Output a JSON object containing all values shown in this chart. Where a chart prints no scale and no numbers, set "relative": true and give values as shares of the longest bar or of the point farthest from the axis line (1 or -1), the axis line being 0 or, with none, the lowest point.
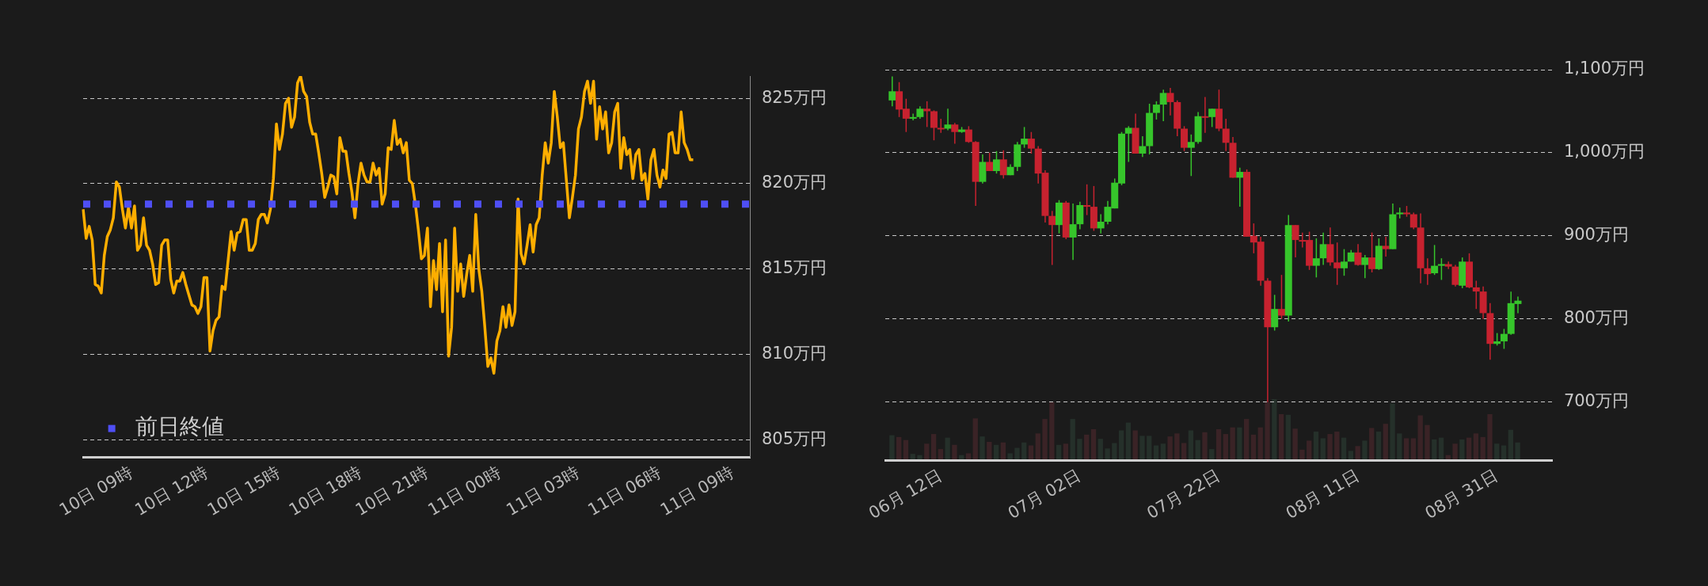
{
  "chart_data": [
    {
      "type": "line",
      "series": [
        {
          "color": "#ffae00",
          "values": [
            818.5,
            816.8,
            817.5,
            816.7,
            814.1,
            814.0,
            813.6,
            815.8,
            816.9,
            817.3,
            818.0,
            820.1,
            819.8,
            818.5,
            817.4,
            818.6,
            817.4,
            818.7,
            816.1,
            816.4,
            818.0,
            816.4,
            816.1,
            815.3,
            814.1,
            814.2,
            816.4,
            816.7,
            816.7,
            814.4,
            813.6,
            814.3,
            814.3,
            814.8,
            814.1,
            813.5,
            812.9,
            812.8,
            812.4,
            812.8,
            814.5,
            814.5,
            810.2,
            811.4,
            812.0,
            812.2,
            814.0,
            813.8,
            815.5,
            817.2,
            816.1,
            817.1,
            817.2,
            817.9,
            817.9,
            816.1,
            816.1,
            816.5,
            817.9,
            818.2,
            818.2,
            817.7,
            818.5,
            820.3,
            823.5,
            822.0,
            822.9,
            824.7,
            825.0,
            823.3,
            823.9,
            825.9,
            826.3,
            825.4,
            825.1,
            823.6,
            822.9,
            822.9,
            821.8,
            820.6,
            819.2,
            819.8,
            820.5,
            820.4,
            819.4,
            822.7,
            821.9,
            821.9,
            820.6,
            819.5,
            818.0,
            820.0,
            821.2,
            820.5,
            820.1,
            820.1,
            821.2,
            820.5,
            820.9,
            818.8,
            819.4,
            822.1,
            822.0,
            823.7,
            822.3,
            822.6,
            821.8,
            822.4,
            820.2,
            820.0,
            818.8,
            817.3,
            815.6,
            815.8,
            817.4,
            812.8,
            815.5,
            813.8,
            816.5,
            812.5,
            816.7,
            809.9,
            811.6,
            817.4,
            813.7,
            815.3,
            813.4,
            814.7,
            815.8,
            813.7,
            818.2,
            815.0,
            813.7,
            811.6,
            809.3,
            809.8,
            808.9,
            810.8,
            811.4,
            812.8,
            811.6,
            812.9,
            811.7,
            812.5,
            819.1,
            815.9,
            815.3,
            816.4,
            817.6,
            816.0,
            817.6,
            818.0,
            820.5,
            822.4,
            821.2,
            822.4,
            825.4,
            823.9,
            822.1,
            822.4,
            820.2,
            818.0,
            819.2,
            820.5,
            823.2,
            823.9,
            825.4,
            826.0,
            824.7,
            826.0,
            822.6,
            824.5,
            823.2,
            824.2,
            821.8,
            822.4,
            824.2,
            824.7,
            820.9,
            822.7,
            821.7,
            822.0,
            820.3,
            821.7,
            822.0,
            820.2,
            820.6,
            819.1,
            821.4,
            822.0,
            820.5,
            819.8,
            820.8,
            820.3,
            822.9,
            823.0,
            821.8,
            821.8,
            824.2,
            822.4,
            822.0,
            821.4,
            821.4,
            null,
            null,
            null,
            null,
            null,
            null,
            null,
            null,
            null,
            null,
            null,
            null,
            null,
            null,
            null,
            null,
            null,
            null,
            null
          ]
        }
      ],
      "categories": [
        null,
        null,
        null,
        null,
        null,
        null,
        null,
        null,
        null,
        null,
        null,
        null,
        null,
        null,
        null,
        null,
        "10日 09時",
        null,
        null,
        null,
        null,
        null,
        null,
        null,
        null,
        null,
        null,
        null,
        null,
        null,
        null,
        null,
        null,
        null,
        null,
        null,
        null,
        null,
        null,
        null,
        null,
        "10日 12時",
        null,
        null,
        null,
        null,
        null,
        null,
        null,
        null,
        null,
        null,
        null,
        null,
        null,
        null,
        null,
        null,
        null,
        null,
        null,
        null,
        null,
        null,
        null,
        "10日 15時",
        null,
        null,
        null,
        null,
        null,
        null,
        null,
        null,
        null,
        null,
        null,
        null,
        null,
        null,
        null,
        null,
        null,
        null,
        null,
        null,
        null,
        null,
        null,
        null,
        null,
        null,
        "10日 18時",
        null,
        null,
        null,
        null,
        null,
        null,
        null,
        null,
        null,
        null,
        null,
        null,
        null,
        null,
        null,
        null,
        null,
        null,
        null,
        null,
        null,
        "10日 21時",
        null,
        null,
        null,
        null,
        null,
        null,
        null,
        null,
        null,
        null,
        null,
        null,
        null,
        null,
        null,
        null,
        null,
        null,
        null,
        null,
        null,
        null,
        null,
        "11日 00時",
        null,
        null,
        null,
        null,
        null,
        null,
        null,
        null,
        null,
        null,
        null,
        null,
        null,
        null,
        null,
        null,
        null,
        null,
        null,
        null,
        null,
        null,
        null,
        null,
        null,
        "11日 03時",
        null,
        null,
        null,
        null,
        null,
        null,
        null,
        null,
        null,
        null,
        null,
        null,
        null,
        null,
        null,
        null,
        null,
        null,
        null,
        null,
        null,
        null,
        null,
        null,
        null,
        null,
        "11日 06時",
        null,
        null,
        null,
        null,
        null,
        null,
        null,
        null,
        null,
        null,
        null,
        null,
        null,
        null,
        null,
        null,
        null,
        null,
        null,
        null,
        null,
        null,
        null,
        "11日 09時",
        null,
        null,
        null,
        null,
        null,
        null
      ],
      "ylim": [
        804,
        826.3
      ],
      "yticks": [
        {
          "value": 805,
          "label": "805万円"
        },
        {
          "value": 810,
          "label": "810万円"
        },
        {
          "value": 815,
          "label": "815万円"
        },
        {
          "value": 820,
          "label": "820万円"
        },
        {
          "value": 825,
          "label": "825万円"
        }
      ],
      "grid": "y",
      "legend": "bottom left",
      "ref_lines": [
        {
          "axis": "y",
          "value": 818.8,
          "label": "前日終値",
          "color": "#4f4ff5",
          "line_style": "dotted"
        }
      ]
    },
    {
      "type": "candlestick",
      "x": [
        "--06-05",
        "--06-06",
        "--06-07",
        "--06-08",
        "--06-09",
        "--06-10",
        "--06-11",
        "--06-12",
        "--06-13",
        "--06-14",
        "--06-15",
        "--06-16",
        "--06-17",
        "--06-18",
        "--06-19",
        "--06-20",
        "--06-21",
        "--06-22",
        "--06-23",
        "--06-24",
        "--06-25",
        "--06-26",
        "--06-27",
        "--06-28",
        "--06-29",
        "--06-30",
        "--07-01",
        "--07-02",
        "--07-03",
        "--07-04",
        "--07-05",
        "--07-06",
        "--07-07",
        "--07-08",
        "--07-09",
        "--07-10",
        "--07-11",
        "--07-12",
        "--07-13",
        "--07-14",
        "--07-15",
        "--07-16",
        "--07-17",
        "--07-18",
        "--07-19",
        "--07-20",
        "--07-21",
        "--07-22",
        "--07-23",
        "--07-24",
        "--07-25",
        "--07-26",
        "--07-27",
        "--07-28",
        "--07-29",
        "--07-30",
        "--07-31",
        "--08-01",
        "--08-02",
        "--08-03",
        "--08-04",
        "--08-05",
        "--08-06",
        "--08-07",
        "--08-08",
        "--08-09",
        "--08-10",
        "--08-11",
        "--08-12",
        "--08-13",
        "--08-14",
        "--08-15",
        "--08-16",
        "--08-17",
        "--08-18",
        "--08-19",
        "--08-20",
        "--08-21",
        "--08-22",
        "--08-23",
        "--08-24",
        "--08-25",
        "--08-26",
        "--08-27",
        "--08-28",
        "--08-29",
        "--08-30",
        "--08-31",
        "--09-01",
        "--09-02",
        "--09-03"
      ],
      "ohlc": [
        [
          1063,
          1092,
          1056,
          1074
        ],
        [
          1074,
          1085,
          1043,
          1052
        ],
        [
          1053,
          1065,
          1025,
          1041
        ],
        [
          1041,
          1047,
          1039,
          1043
        ],
        [
          1043,
          1056,
          1041,
          1053
        ],
        [
          1053,
          1062,
          1031,
          1050
        ],
        [
          1050,
          1051,
          1015,
          1030
        ],
        [
          1030,
          1041,
          1024,
          1029
        ],
        [
          1029,
          1053,
          1027,
          1034
        ],
        [
          1034,
          1036,
          1011,
          1025
        ],
        [
          1025,
          1031,
          1024,
          1028
        ],
        [
          1028,
          1032,
          1012,
          1013
        ],
        [
          1013,
          1014,
          936,
          965
        ],
        [
          965,
          998,
          963,
          989
        ],
        [
          989,
          1000,
          978,
          978
        ],
        [
          978,
          1002,
          975,
          992
        ],
        [
          992,
          1003,
          969,
          973
        ],
        [
          973,
          986,
          973,
          983
        ],
        [
          983,
          1013,
          978,
          1010
        ],
        [
          1010,
          1031,
          1006,
          1017
        ],
        [
          1017,
          1025,
          999,
          1005
        ],
        [
          1005,
          1008,
          963,
          975
        ],
        [
          976,
          979,
          916,
          924
        ],
        [
          924,
          930,
          865,
          913
        ],
        [
          913,
          943,
          903,
          940
        ],
        [
          940,
          942,
          896,
          898
        ],
        [
          898,
          939,
          871,
          914
        ],
        [
          914,
          941,
          908,
          937
        ],
        [
          937,
          962,
          925,
          935
        ],
        [
          935,
          960,
          906,
          909
        ],
        [
          909,
          926,
          903,
          917
        ],
        [
          917,
          942,
          914,
          935
        ],
        [
          933,
          969,
          933,
          964
        ],
        [
          963,
          1025,
          961,
          1023
        ],
        [
          1023,
          1032,
          989,
          1030
        ],
        [
          1030,
          1047,
          999,
          999
        ],
        [
          999,
          1020,
          995,
          1008
        ],
        [
          1008,
          1059,
          998,
          1048
        ],
        [
          1048,
          1062,
          1040,
          1058
        ],
        [
          1058,
          1076,
          1038,
          1072
        ],
        [
          1072,
          1078,
          1045,
          1061
        ],
        [
          1061,
          1063,
          1020,
          1029
        ],
        [
          1029,
          1032,
          1002,
          1006
        ],
        [
          1006,
          1022,
          972,
          1013
        ],
        [
          1013,
          1049,
          1011,
          1044
        ],
        [
          1044,
          1067,
          1024,
          1043
        ],
        [
          1043,
          1053,
          1031,
          1053
        ],
        [
          1053,
          1076,
          1026,
          1029
        ],
        [
          1029,
          1041,
          1002,
          1012
        ],
        [
          1012,
          1019,
          970,
          970
        ],
        [
          970,
          982,
          935,
          977
        ],
        [
          977,
          980,
          899,
          899
        ],
        [
          900,
          915,
          879,
          892
        ],
        [
          893,
          899,
          840,
          846
        ],
        [
          846,
          849,
          700,
          790
        ],
        [
          790,
          829,
          786,
          812
        ],
        [
          812,
          853,
          800,
          804
        ],
        [
          804,
          925,
          797,
          913
        ],
        [
          913,
          913,
          874,
          895
        ],
        [
          895,
          904,
          886,
          894
        ],
        [
          895,
          905,
          859,
          864
        ],
        [
          864,
          897,
          850,
          873
        ],
        [
          873,
          904,
          865,
          890
        ],
        [
          890,
          910,
          864,
          868
        ],
        [
          868,
          892,
          841,
          861
        ],
        [
          861,
          884,
          852,
          869
        ],
        [
          869,
          883,
          869,
          880
        ],
        [
          880,
          890,
          864,
          865
        ],
        [
          865,
          877,
          849,
          874
        ],
        [
          874,
          904,
          856,
          860
        ],
        [
          860,
          897,
          859,
          888
        ],
        [
          888,
          899,
          875,
          884
        ],
        [
          884,
          939,
          884,
          926
        ],
        [
          926,
          934,
          921,
          928
        ],
        [
          928,
          936,
          923,
          926
        ],
        [
          926,
          928,
          908,
          910
        ],
        [
          910,
          927,
          843,
          861
        ],
        [
          861,
          873,
          841,
          854
        ],
        [
          855,
          889,
          853,
          864
        ],
        [
          864,
          873,
          847,
          866
        ],
        [
          866,
          869,
          860,
          863
        ],
        [
          863,
          865,
          839,
          841
        ],
        [
          840,
          874,
          837,
          869
        ],
        [
          869,
          879,
          837,
          838
        ],
        [
          838,
          846,
          812,
          833
        ],
        [
          833,
          839,
          800,
          807
        ],
        [
          807,
          819,
          751,
          770
        ],
        [
          770,
          783,
          768,
          773
        ],
        [
          773,
          788,
          764,
          782
        ],
        [
          782,
          833,
          781,
          819
        ],
        [
          818,
          827,
          807,
          822
        ]
      ],
      "colors": [
        "#36c52b",
        "#c7222f",
        "#c7222f",
        "#36c52b",
        "#36c52b",
        "#c7222f",
        "#c7222f",
        "#c7222f",
        "#36c52b",
        "#c7222f",
        "#36c52b",
        "#c7222f",
        "#c7222f",
        "#36c52b",
        "#c7222f",
        "#36c52b",
        "#c7222f",
        "#36c52b",
        "#36c52b",
        "#36c52b",
        "#c7222f",
        "#c7222f",
        "#c7222f",
        "#c7222f",
        "#36c52b",
        "#c7222f",
        "#36c52b",
        "#36c52b",
        "#c7222f",
        "#c7222f",
        "#36c52b",
        "#36c52b",
        "#36c52b",
        "#36c52b",
        "#36c52b",
        "#c7222f",
        "#36c52b",
        "#36c52b",
        "#36c52b",
        "#36c52b",
        "#c7222f",
        "#c7222f",
        "#c7222f",
        "#36c52b",
        "#36c52b",
        "#c7222f",
        "#36c52b",
        "#c7222f",
        "#c7222f",
        "#c7222f",
        "#36c52b",
        "#c7222f",
        "#c7222f",
        "#c7222f",
        "#c7222f",
        "#36c52b",
        "#c7222f",
        "#36c52b",
        "#c7222f",
        "#c7222f",
        "#c7222f",
        "#36c52b",
        "#36c52b",
        "#c7222f",
        "#c7222f",
        "#36c52b",
        "#36c52b",
        "#c7222f",
        "#36c52b",
        "#c7222f",
        "#36c52b",
        "#c7222f",
        "#36c52b",
        "#36c52b",
        "#c7222f",
        "#c7222f",
        "#c7222f",
        "#c7222f",
        "#36c52b",
        "#36c52b",
        "#c7222f",
        "#c7222f",
        "#36c52b",
        "#c7222f",
        "#c7222f",
        "#c7222f",
        "#c7222f",
        "#36c52b",
        "#36c52b",
        "#36c52b",
        "#36c52b"
      ],
      "xlim": [
        "--06-04",
        "--09-08"
      ],
      "xticks": [
        {
          "value": "--06-12",
          "label": "06月 12日"
        },
        {
          "value": "--07-02",
          "label": "07月 02日"
        },
        {
          "value": "--07-22",
          "label": "07月 22日"
        },
        {
          "value": "--08-11",
          "label": "08月 11日"
        },
        {
          "value": "--08-31",
          "label": "08月 31日"
        }
      ],
      "ylim": [
        630,
        1100
      ],
      "yticks": [
        {
          "value": 700,
          "label": "700万円"
        },
        {
          "value": 800,
          "label": "800万円"
        },
        {
          "value": 900,
          "label": "900万円"
        },
        {
          "value": 1000,
          "label": "1,000万円"
        },
        {
          "value": 1100,
          "label": "1,100万円"
        }
      ],
      "grid": "y"
    },
    {
      "type": "bar",
      "relative": true,
      "tick_labels": false,
      "categories": [
        null,
        null,
        null,
        null,
        null,
        null,
        null,
        null,
        null,
        null,
        null,
        null,
        null,
        null,
        null,
        null,
        null,
        null,
        null,
        null,
        null,
        null,
        null,
        null,
        null,
        null,
        null,
        null,
        null,
        null,
        null,
        null,
        null,
        null,
        null,
        null,
        null,
        null,
        null,
        null,
        null,
        null,
        null,
        null,
        null,
        null,
        null,
        null,
        null,
        null,
        null,
        null,
        null,
        null,
        null,
        null,
        null,
        null,
        null,
        null,
        null,
        null,
        null,
        null,
        null,
        null,
        null,
        null,
        null,
        null,
        null,
        null,
        null,
        null,
        null,
        null,
        null,
        null,
        null,
        null,
        null,
        null,
        null,
        null,
        null,
        null,
        null,
        null,
        null,
        null,
        null
      ],
      "values": [
        0.4,
        0.37,
        0.32,
        0.09,
        0.07,
        0.26,
        0.42,
        0.17,
        0.36,
        0.24,
        0.07,
        0.1,
        0.68,
        0.38,
        0.29,
        0.24,
        0.28,
        0.1,
        0.19,
        0.28,
        0.23,
        0.43,
        0.67,
        0.95,
        0.24,
        0.26,
        0.67,
        0.34,
        0.41,
        0.5,
        0.34,
        0.18,
        0.27,
        0.48,
        0.61,
        0.48,
        0.39,
        0.39,
        0.23,
        0.26,
        0.38,
        0.43,
        0.27,
        0.48,
        0.32,
        0.45,
        0.17,
        0.5,
        0.42,
        0.53,
        0.53,
        0.67,
        0.41,
        0.53,
        0.95,
        1,
        0.75,
        0.74,
        0.51,
        0.16,
        0.31,
        0.46,
        0.35,
        0.42,
        0.46,
        0.36,
        0.14,
        0.22,
        0.31,
        0.52,
        0.46,
        0.59,
        0.93,
        0.43,
        0.35,
        0.35,
        0.73,
        0.57,
        0.33,
        0.36,
        0.07,
        0.26,
        0.33,
        0.36,
        0.43,
        0.37,
        0.75,
        0.26,
        0.23,
        0.49,
        0.28
      ],
      "colors": [
        "#25302a",
        "#3a2326",
        "#3a2326",
        "#25302a",
        "#25302a",
        "#3a2326",
        "#3a2326",
        "#3a2326",
        "#25302a",
        "#3a2326",
        "#25302a",
        "#3a2326",
        "#3a2326",
        "#25302a",
        "#3a2326",
        "#25302a",
        "#3a2326",
        "#25302a",
        "#25302a",
        "#25302a",
        "#3a2326",
        "#3a2326",
        "#3a2326",
        "#3a2326",
        "#25302a",
        "#3a2326",
        "#25302a",
        "#25302a",
        "#3a2326",
        "#3a2326",
        "#25302a",
        "#25302a",
        "#25302a",
        "#25302a",
        "#25302a",
        "#3a2326",
        "#25302a",
        "#25302a",
        "#25302a",
        "#25302a",
        "#3a2326",
        "#3a2326",
        "#3a2326",
        "#25302a",
        "#25302a",
        "#3a2326",
        "#25302a",
        "#3a2326",
        "#3a2326",
        "#3a2326",
        "#25302a",
        "#3a2326",
        "#3a2326",
        "#3a2326",
        "#3a2326",
        "#25302a",
        "#3a2326",
        "#25302a",
        "#3a2326",
        "#3a2326",
        "#3a2326",
        "#25302a",
        "#25302a",
        "#3a2326",
        "#3a2326",
        "#25302a",
        "#25302a",
        "#3a2326",
        "#25302a",
        "#3a2326",
        "#25302a",
        "#3a2326",
        "#25302a",
        "#25302a",
        "#3a2326",
        "#3a2326",
        "#3a2326",
        "#3a2326",
        "#25302a",
        "#25302a",
        "#3a2326",
        "#3a2326",
        "#25302a",
        "#3a2326",
        "#3a2326",
        "#3a2326",
        "#3a2326",
        "#25302a",
        "#25302a",
        "#25302a",
        "#25302a"
      ]
    }
  ]
}
